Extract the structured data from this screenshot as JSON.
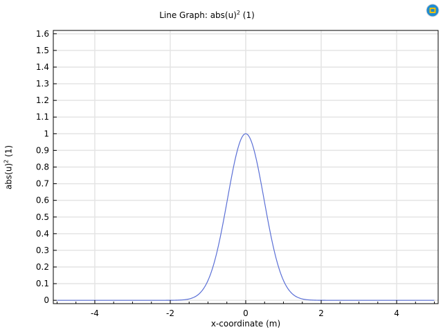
{
  "title": {
    "prefix": "Line Graph: abs(u)",
    "exp": "2",
    "suffix": " (1)"
  },
  "ylabel": {
    "prefix": "abs(u)",
    "exp": "2",
    "suffix": " (1)"
  },
  "xlabel": "x-coordinate (m)",
  "logo_icon": "comsol-app-icon",
  "colors": {
    "line": "#5a6fd6",
    "grid": "#e4e4e4",
    "axis": "#000000",
    "logo_blue": "#1f8bd1",
    "logo_yellow": "#f2c200"
  },
  "chart_data": {
    "type": "line",
    "title": "Line Graph: abs(u)^2 (1)",
    "xlabel": "x-coordinate (m)",
    "ylabel": "abs(u)^2 (1)",
    "xlim": [
      -5.1,
      5.1
    ],
    "ylim": [
      -0.02,
      1.62
    ],
    "grid": true,
    "x_ticks": [
      -4,
      -2,
      0,
      2,
      4
    ],
    "x_tick_labels": [
      "-4",
      "-2",
      "0",
      "2",
      "4"
    ],
    "y_ticks": [
      0,
      0.1,
      0.2,
      0.3,
      0.4,
      0.5,
      0.6,
      0.7,
      0.8,
      0.9,
      1,
      1.1,
      1.2,
      1.3,
      1.4,
      1.5,
      1.6
    ],
    "y_tick_labels": [
      "0",
      "0.1",
      "0.2",
      "0.3",
      "0.4",
      "0.5",
      "0.6",
      "0.7",
      "0.8",
      "0.9",
      "1",
      "1.1",
      "1.2",
      "1.3",
      "1.4",
      "1.5",
      "1.6"
    ],
    "series": [
      {
        "x": [
          -5,
          -4,
          -3,
          -2,
          -1.8,
          -1.6,
          -1.4,
          -1.2,
          -1.0,
          -0.9,
          -0.8,
          -0.7,
          -0.6,
          -0.5,
          -0.4,
          -0.3,
          -0.2,
          -0.1,
          0,
          0.1,
          0.2,
          0.3,
          0.4,
          0.5,
          0.6,
          0.7,
          0.8,
          0.9,
          1.0,
          1.2,
          1.4,
          1.6,
          1.8,
          2,
          3,
          4,
          5
        ],
        "y": [
          0,
          0,
          0,
          0.0005,
          0.0017,
          0.0059,
          0.0183,
          0.0498,
          0.1194,
          0.1769,
          0.2528,
          0.346,
          0.4531,
          0.5669,
          0.6775,
          0.7729,
          0.8421,
          0.8869,
          1.0,
          0.8869,
          0.8421,
          0.7729,
          0.6775,
          0.5669,
          0.4531,
          0.346,
          0.2528,
          0.1769,
          0.1194,
          0.0498,
          0.0183,
          0.0059,
          0.0017,
          0.0005,
          0,
          0,
          0
        ]
      }
    ]
  }
}
